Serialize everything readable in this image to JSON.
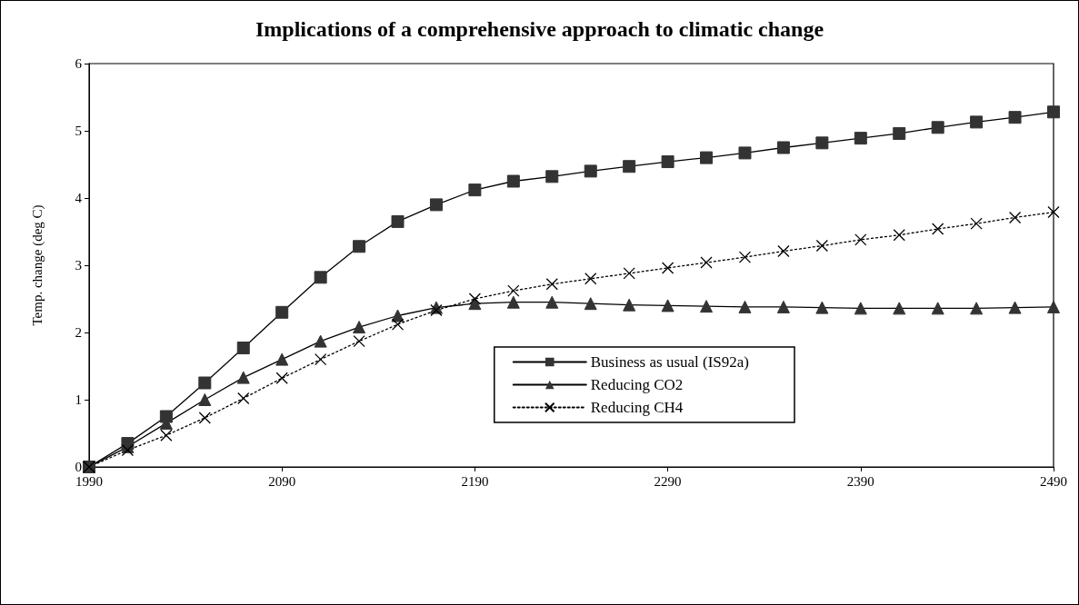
{
  "chart_data": {
    "type": "line",
    "title": "Implications of a comprehensive approach to climatic change",
    "ylabel": "Temp. change (deg C)",
    "x": [
      1990,
      2010,
      2030,
      2050,
      2070,
      2090,
      2110,
      2130,
      2150,
      2170,
      2190,
      2210,
      2230,
      2250,
      2270,
      2290,
      2310,
      2330,
      2350,
      2370,
      2390,
      2410,
      2430,
      2450,
      2470,
      2490
    ],
    "series": [
      {
        "name": "Business as usual (IS92a)",
        "color": "#333333",
        "marker": "square",
        "line_style": "solid",
        "values": [
          0,
          0.35,
          0.75,
          1.25,
          1.77,
          2.3,
          2.82,
          3.28,
          3.65,
          3.9,
          4.12,
          4.25,
          4.32,
          4.4,
          4.47,
          4.54,
          4.6,
          4.67,
          4.75,
          4.82,
          4.89,
          4.96,
          5.05,
          5.13,
          5.2,
          5.28
        ]
      },
      {
        "name": "Reducing CO2",
        "color": "#333333",
        "marker": "triangle",
        "line_style": "solid",
        "values": [
          0,
          0.3,
          0.65,
          1.0,
          1.33,
          1.6,
          1.87,
          2.08,
          2.25,
          2.37,
          2.43,
          2.45,
          2.45,
          2.43,
          2.41,
          2.4,
          2.39,
          2.38,
          2.38,
          2.37,
          2.36,
          2.36,
          2.36,
          2.36,
          2.37,
          2.38
        ]
      },
      {
        "name": "Reducing CH4",
        "color": "#000000",
        "marker": "cross",
        "line_style": "dotted",
        "values": [
          0,
          0.25,
          0.47,
          0.73,
          1.02,
          1.32,
          1.6,
          1.87,
          2.12,
          2.33,
          2.5,
          2.62,
          2.72,
          2.8,
          2.88,
          2.96,
          3.04,
          3.12,
          3.21,
          3.29,
          3.38,
          3.45,
          3.54,
          3.62,
          3.71,
          3.79
        ]
      }
    ],
    "xlim": [
      1990,
      2490
    ],
    "xticks": [
      1990,
      2090,
      2190,
      2290,
      2390,
      2490
    ],
    "ylim": [
      0,
      6
    ],
    "yticks": [
      0,
      1,
      2,
      3,
      4,
      5,
      6
    ],
    "grid": false,
    "legend": "bottom right"
  }
}
